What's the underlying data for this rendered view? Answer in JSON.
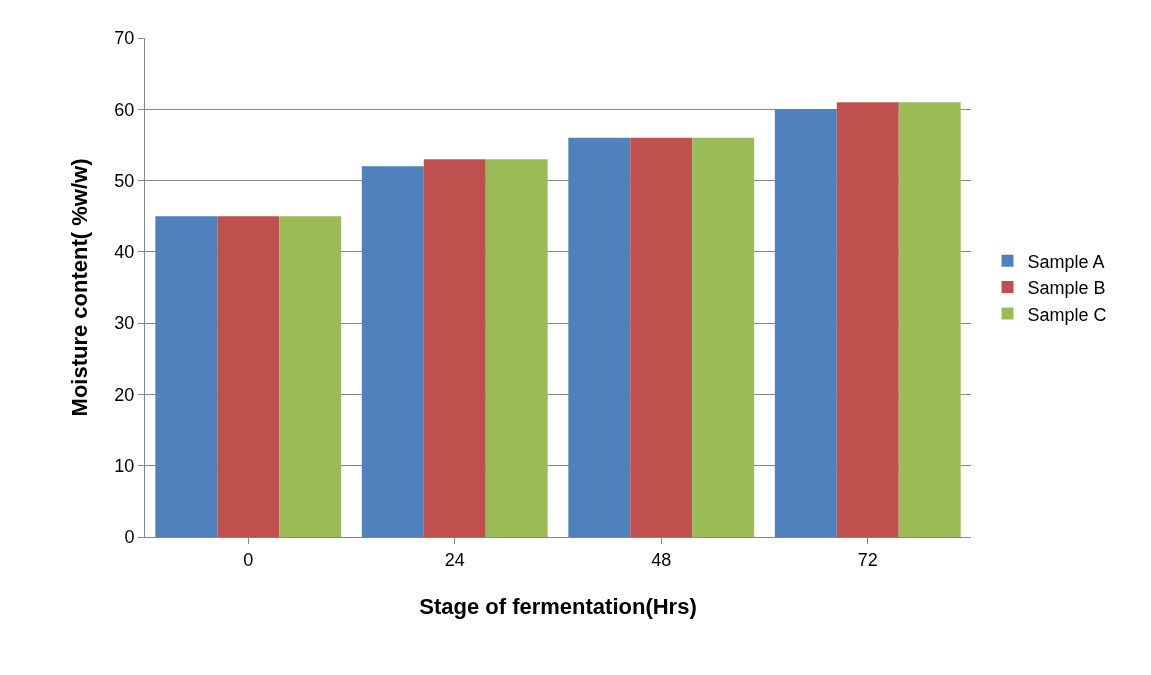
{
  "chart_data": {
    "type": "bar",
    "xlabel": "Stage of fermentation(Hrs)",
    "ylabel": "Moisture content( %w/w)",
    "categories": [
      "0",
      "24",
      "48",
      "72"
    ],
    "series": [
      {
        "name": "Sample A",
        "color": "#4f81bd",
        "values": [
          45,
          52,
          56,
          60
        ]
      },
      {
        "name": "Sample B",
        "color": "#c0504d",
        "values": [
          45,
          53,
          56,
          61
        ]
      },
      {
        "name": "Sample C",
        "color": "#9bbb59",
        "values": [
          45,
          53,
          56,
          61
        ]
      }
    ],
    "ylim": [
      0,
      70
    ],
    "yticks": [
      0,
      10,
      20,
      30,
      40,
      50,
      60,
      70
    ],
    "grid": "y",
    "legend": "right"
  }
}
